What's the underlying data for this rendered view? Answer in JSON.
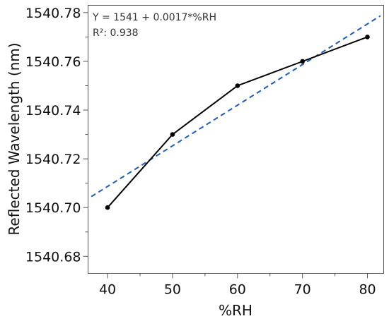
{
  "chart_data": {
    "type": "line",
    "xlabel": "%RH",
    "ylabel": "Reflected Wavelength (nm)",
    "xlim": [
      37,
      82.5
    ],
    "ylim": [
      1540.673,
      1540.783
    ],
    "x_ticks": [
      40,
      50,
      60,
      70,
      80
    ],
    "x_tick_labels": [
      "40",
      "50",
      "60",
      "70",
      "80"
    ],
    "y_ticks": [
      1540.68,
      1540.7,
      1540.72,
      1540.74,
      1540.76,
      1540.78
    ],
    "y_tick_labels": [
      "1540.68",
      "1540.70",
      "1540.72",
      "1540.74",
      "1540.76",
      "1540.78"
    ],
    "grid": false,
    "series": [
      {
        "style": "solid line with circular markers",
        "color": "#000000",
        "x": [
          40,
          50,
          60,
          70,
          80
        ],
        "y": [
          1540.7,
          1540.73,
          1540.75,
          1540.76,
          1540.77
        ]
      },
      {
        "style": "dashed fit line",
        "color": "#1a5fbf",
        "x": [
          37.5,
          82
        ],
        "y": [
          1540.7045,
          1540.7787
        ]
      }
    ],
    "annotations": [
      "Y = 1541 + 0.0017*%RH",
      "R²: 0.938"
    ]
  }
}
